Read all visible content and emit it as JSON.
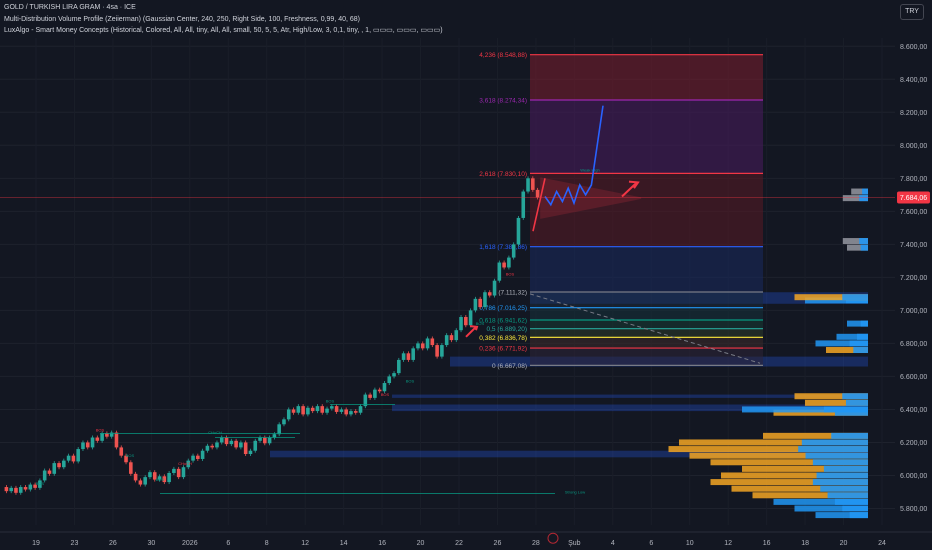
{
  "header": {
    "title": "GOLD / TURKISH LIRA GRAM · 4sa · ICE",
    "indicator_1": "Multi-Distribution Volume Profile (Zeiierman) (Gaussian Center, 240, 250, Right Side, 100, Freshness, 0,99, 40, 68)",
    "indicator_2": "LuxAlgo - Smart Money Concepts (Historical, Colored, All, All, tiny, All, All, small, 50, 5, 5, Atr, High/Low, 3, 0,1, tiny, , 1, ▭▭▭, ▭▭▭, ▭▭▭)",
    "currency": "TRY"
  },
  "colors": {
    "background": "#131722",
    "candle_up": "#26a69a",
    "candle_down": "#ef5350",
    "price_tag": "#f23645",
    "projection": "#2962ff",
    "triangle": "#f23645",
    "profile_blue": "#2196f3",
    "profile_orange": "#f5a623"
  },
  "chart_data": {
    "type": "candlestick",
    "y_axis": {
      "range": [
        5700,
        8650
      ],
      "ticks": [
        "8.600,00",
        "8.400,00",
        "8.200,00",
        "8.000,00",
        "7.800,00",
        "7.600,00",
        "7.400,00",
        "7.200,00",
        "7.000,00",
        "6.800,00",
        "6.600,00",
        "6.400,00",
        "6.200,00",
        "6.000,00",
        "5.800,00"
      ]
    },
    "x_axis": {
      "ticks": [
        "19",
        "23",
        "26",
        "30",
        "2026",
        "6",
        "8",
        "12",
        "14",
        "16",
        "20",
        "22",
        "26",
        "28",
        "Şub",
        "4",
        "6",
        "10",
        "12",
        "16",
        "18",
        "20",
        "24"
      ]
    },
    "current_price": {
      "value": 7684,
      "label": "7.684,06"
    },
    "price_path": [
      [
        5930,
        5905
      ],
      [
        5905,
        5925
      ],
      [
        5925,
        5895
      ],
      [
        5895,
        5930
      ],
      [
        5930,
        5915
      ],
      [
        5915,
        5945
      ],
      [
        5945,
        5925
      ],
      [
        5925,
        5970
      ],
      [
        5970,
        6030
      ],
      [
        6030,
        6010
      ],
      [
        6010,
        6075
      ],
      [
        6075,
        6050
      ],
      [
        6050,
        6090
      ],
      [
        6090,
        6120
      ],
      [
        6120,
        6085
      ],
      [
        6085,
        6160
      ],
      [
        6160,
        6200
      ],
      [
        6200,
        6170
      ],
      [
        6170,
        6230
      ],
      [
        6230,
        6210
      ],
      [
        6210,
        6255
      ],
      [
        6255,
        6235
      ],
      [
        6235,
        6260
      ],
      [
        6260,
        6170
      ],
      [
        6170,
        6120
      ],
      [
        6120,
        6080
      ],
      [
        6080,
        6010
      ],
      [
        6010,
        5970
      ],
      [
        5970,
        5945
      ],
      [
        5945,
        5990
      ],
      [
        5990,
        6020
      ],
      [
        6020,
        5975
      ],
      [
        5975,
        5995
      ],
      [
        5995,
        5960
      ],
      [
        5960,
        6015
      ],
      [
        6015,
        6040
      ],
      [
        6040,
        5990
      ],
      [
        5990,
        6050
      ],
      [
        6050,
        6090
      ],
      [
        6090,
        6120
      ],
      [
        6120,
        6100
      ],
      [
        6100,
        6150
      ],
      [
        6150,
        6180
      ],
      [
        6180,
        6170
      ],
      [
        6170,
        6200
      ],
      [
        6200,
        6230
      ],
      [
        6230,
        6190
      ],
      [
        6190,
        6210
      ],
      [
        6210,
        6170
      ],
      [
        6170,
        6200
      ],
      [
        6200,
        6130
      ],
      [
        6130,
        6150
      ],
      [
        6150,
        6210
      ],
      [
        6210,
        6230
      ],
      [
        6230,
        6195
      ],
      [
        6195,
        6230
      ],
      [
        6230,
        6250
      ],
      [
        6250,
        6310
      ],
      [
        6310,
        6340
      ],
      [
        6340,
        6400
      ],
      [
        6400,
        6380
      ],
      [
        6380,
        6420
      ],
      [
        6420,
        6370
      ],
      [
        6370,
        6410
      ],
      [
        6410,
        6390
      ],
      [
        6390,
        6420
      ],
      [
        6420,
        6380
      ],
      [
        6380,
        6405
      ],
      [
        6405,
        6420
      ],
      [
        6420,
        6385
      ],
      [
        6385,
        6400
      ],
      [
        6400,
        6370
      ],
      [
        6370,
        6390
      ],
      [
        6390,
        6380
      ],
      [
        6380,
        6420
      ],
      [
        6420,
        6490
      ],
      [
        6490,
        6470
      ],
      [
        6470,
        6520
      ],
      [
        6520,
        6510
      ],
      [
        6510,
        6560
      ],
      [
        6560,
        6600
      ],
      [
        6600,
        6620
      ],
      [
        6620,
        6700
      ],
      [
        6700,
        6740
      ],
      [
        6740,
        6700
      ],
      [
        6700,
        6770
      ],
      [
        6770,
        6800
      ],
      [
        6800,
        6770
      ],
      [
        6770,
        6830
      ],
      [
        6830,
        6790
      ],
      [
        6790,
        6720
      ],
      [
        6720,
        6790
      ],
      [
        6790,
        6850
      ],
      [
        6850,
        6820
      ],
      [
        6820,
        6880
      ],
      [
        6880,
        6960
      ],
      [
        6960,
        6910
      ],
      [
        6910,
        7000
      ],
      [
        7000,
        7070
      ],
      [
        7070,
        7020
      ],
      [
        7020,
        7110
      ],
      [
        7110,
        7090
      ],
      [
        7090,
        7180
      ],
      [
        7180,
        7290
      ],
      [
        7290,
        7260
      ],
      [
        7260,
        7320
      ],
      [
        7320,
        7400
      ],
      [
        7400,
        7560
      ],
      [
        7560,
        7720
      ],
      [
        7720,
        7800
      ],
      [
        7800,
        7730
      ],
      [
        7730,
        7684
      ]
    ],
    "fib_levels": [
      {
        "label": "4,236 (8.548,88)",
        "value": 8548.88,
        "color": "#f23645"
      },
      {
        "label": "3,618 (8.274,34)",
        "value": 8274.34,
        "color": "#9c27b0"
      },
      {
        "label": "2,618 (7.830,10)",
        "value": 7830.1,
        "color": "#f23645"
      },
      {
        "label": "1,618 (7.385,86)",
        "value": 7385.86,
        "color": "#2962ff"
      },
      {
        "label": "1 (7.111,32)",
        "value": 7111.32,
        "color": "#787b86"
      },
      {
        "label": "0,786 (7.016,25)",
        "value": 7016.25,
        "color": "#2196f3"
      },
      {
        "label": "0,618 (6.941,62)",
        "value": 6941.62,
        "color": "#089981"
      },
      {
        "label": "0,5 (6.889,20)",
        "value": 6889.2,
        "color": "#26a69a"
      },
      {
        "label": "0,382 (6.836,78)",
        "value": 6836.78,
        "color": "#ffeb3b"
      },
      {
        "label": "0,236 (6.771,92)",
        "value": 6771.92,
        "color": "#f23645"
      },
      {
        "label": "0 (6.667,08)",
        "value": 6667.08,
        "color": "#787b86"
      }
    ],
    "smc_labels": [
      "BOS",
      "BOS",
      "BOS",
      "BOS",
      "CHoCH",
      "CHoCH",
      "BOS",
      "BOS",
      "BOS",
      "BOS",
      "BOS",
      "Strong Low",
      "Weak High"
    ],
    "projection_path": [
      7690,
      7640,
      7720,
      7660,
      7740,
      7650,
      7760,
      7700,
      7760,
      8000,
      8240
    ],
    "volume_profile": [
      {
        "price": 5760,
        "len": 0.25,
        "color": "blue"
      },
      {
        "price": 5800,
        "len": 0.35,
        "color": "blue"
      },
      {
        "price": 5840,
        "len": 0.45,
        "color": "blue"
      },
      {
        "price": 5880,
        "len": 0.55,
        "color": "orange"
      },
      {
        "price": 5920,
        "len": 0.65,
        "color": "orange"
      },
      {
        "price": 5960,
        "len": 0.75,
        "color": "orange"
      },
      {
        "price": 6000,
        "len": 0.7,
        "color": "orange"
      },
      {
        "price": 6040,
        "len": 0.6,
        "color": "orange"
      },
      {
        "price": 6080,
        "len": 0.75,
        "color": "orange"
      },
      {
        "price": 6120,
        "len": 0.85,
        "color": "orange"
      },
      {
        "price": 6160,
        "len": 0.95,
        "color": "orange"
      },
      {
        "price": 6200,
        "len": 0.9,
        "color": "orange"
      },
      {
        "price": 6240,
        "len": 0.5,
        "color": "orange"
      },
      {
        "price": 6380,
        "len": 0.45,
        "color": "orange"
      },
      {
        "price": 6400,
        "len": 0.6,
        "color": "blue"
      },
      {
        "price": 6440,
        "len": 0.3,
        "color": "orange"
      },
      {
        "price": 6480,
        "len": 0.35,
        "color": "orange"
      },
      {
        "price": 6760,
        "len": 0.2,
        "color": "orange"
      },
      {
        "price": 6800,
        "len": 0.25,
        "color": "blue"
      },
      {
        "price": 6840,
        "len": 0.15,
        "color": "blue"
      },
      {
        "price": 6920,
        "len": 0.1,
        "color": "blue"
      },
      {
        "price": 7060,
        "len": 0.3,
        "color": "blue"
      },
      {
        "price": 7080,
        "len": 0.35,
        "color": "orange"
      },
      {
        "price": 7380,
        "len": 0.1,
        "color": "white"
      },
      {
        "price": 7420,
        "len": 0.12,
        "color": "white"
      },
      {
        "price": 7680,
        "len": 0.12,
        "color": "white"
      },
      {
        "price": 7720,
        "len": 0.08,
        "color": "white"
      }
    ]
  }
}
